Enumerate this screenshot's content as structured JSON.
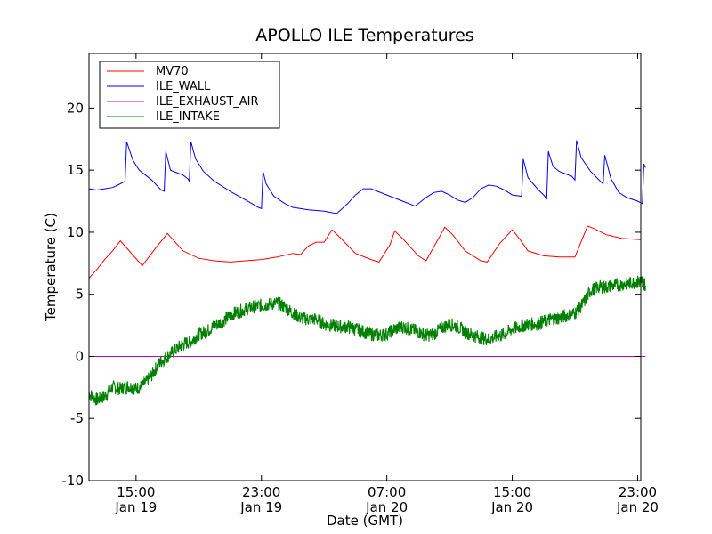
{
  "chart_data": {
    "type": "line",
    "title": "APOLLO ILE Temperatures",
    "xlabel": "Date (GMT)",
    "ylabel": "Temperature (C)",
    "ylim": [
      -10,
      24.4
    ],
    "xlim_hours_span": [
      0,
      35.2
    ],
    "yticks": [
      -10,
      -5,
      0,
      5,
      10,
      15,
      20
    ],
    "xticks": [
      {
        "hour": 3.0,
        "time": "15:00",
        "date": "Jan 19"
      },
      {
        "hour": 11.0,
        "time": "23:00",
        "date": "Jan 19"
      },
      {
        "hour": 19.0,
        "time": "07:00",
        "date": "Jan 20"
      },
      {
        "hour": 27.0,
        "time": "15:00",
        "date": "Jan 20"
      },
      {
        "hour": 35.0,
        "time": "23:00",
        "date": "Jan 20"
      }
    ],
    "legend_position": "top-left",
    "grid": false,
    "series": [
      {
        "name": "MV70",
        "color": "#ff0000",
        "points": [
          [
            0,
            6.3
          ],
          [
            0.5,
            7.0
          ],
          [
            1.0,
            7.8
          ],
          [
            1.5,
            8.5
          ],
          [
            2.0,
            9.3
          ],
          [
            2.5,
            8.6
          ],
          [
            3.4,
            7.3
          ],
          [
            4.3,
            8.8
          ],
          [
            5.0,
            9.9
          ],
          [
            6.0,
            8.5
          ],
          [
            7.0,
            7.9
          ],
          [
            8.0,
            7.7
          ],
          [
            9.0,
            7.6
          ],
          [
            10.0,
            7.7
          ],
          [
            11.0,
            7.8
          ],
          [
            12.0,
            8.0
          ],
          [
            13.0,
            8.3
          ],
          [
            13.5,
            8.2
          ],
          [
            14.0,
            8.9
          ],
          [
            14.5,
            9.2
          ],
          [
            15.0,
            9.2
          ],
          [
            15.5,
            10.2
          ],
          [
            16.0,
            9.6
          ],
          [
            17.0,
            8.3
          ],
          [
            18.0,
            7.8
          ],
          [
            18.5,
            7.6
          ],
          [
            19.2,
            9.0
          ],
          [
            19.5,
            10.1
          ],
          [
            20.0,
            9.5
          ],
          [
            21.0,
            8.1
          ],
          [
            21.5,
            7.7
          ],
          [
            22.3,
            9.5
          ],
          [
            22.7,
            10.4
          ],
          [
            23.2,
            9.8
          ],
          [
            24.0,
            8.5
          ],
          [
            25.0,
            7.7
          ],
          [
            25.4,
            7.6
          ],
          [
            26.2,
            9.1
          ],
          [
            27.0,
            10.2
          ],
          [
            27.5,
            9.4
          ],
          [
            28.0,
            8.5
          ],
          [
            29.0,
            8.1
          ],
          [
            30.0,
            8.0
          ],
          [
            31.0,
            8.0
          ],
          [
            31.8,
            10.5
          ],
          [
            32.2,
            10.3
          ],
          [
            33.0,
            9.8
          ],
          [
            34.0,
            9.5
          ],
          [
            35.2,
            9.4
          ]
        ]
      },
      {
        "name": "ILE_WALL",
        "color": "#0000ff",
        "points": [
          [
            0,
            13.5
          ],
          [
            0.5,
            13.4
          ],
          [
            1.0,
            13.5
          ],
          [
            1.5,
            13.6
          ],
          [
            2.0,
            13.9
          ],
          [
            2.3,
            14.1
          ],
          [
            2.4,
            17.3
          ],
          [
            2.8,
            15.8
          ],
          [
            3.2,
            15.0
          ],
          [
            4.0,
            14.2
          ],
          [
            4.6,
            13.4
          ],
          [
            4.8,
            13.3
          ],
          [
            4.9,
            16.5
          ],
          [
            5.2,
            15.0
          ],
          [
            5.6,
            14.8
          ],
          [
            6.0,
            14.6
          ],
          [
            6.3,
            14.3
          ],
          [
            6.4,
            14.1
          ],
          [
            6.5,
            17.3
          ],
          [
            6.8,
            15.9
          ],
          [
            7.3,
            14.9
          ],
          [
            8.0,
            14.1
          ],
          [
            9.0,
            13.3
          ],
          [
            10.0,
            12.6
          ],
          [
            10.8,
            12.0
          ],
          [
            11.0,
            11.9
          ],
          [
            11.1,
            14.9
          ],
          [
            11.3,
            13.9
          ],
          [
            11.8,
            12.9
          ],
          [
            12.5,
            12.3
          ],
          [
            13.0,
            12.0
          ],
          [
            14.0,
            11.8
          ],
          [
            15.0,
            11.7
          ],
          [
            15.8,
            11.5
          ],
          [
            16.5,
            12.3
          ],
          [
            17.0,
            13.0
          ],
          [
            17.5,
            13.5
          ],
          [
            18.0,
            13.5
          ],
          [
            19.0,
            13.0
          ],
          [
            20.0,
            12.5
          ],
          [
            20.8,
            12.1
          ],
          [
            21.5,
            12.8
          ],
          [
            22.0,
            13.2
          ],
          [
            22.5,
            13.3
          ],
          [
            23.0,
            13.0
          ],
          [
            23.5,
            12.6
          ],
          [
            24.0,
            12.4
          ],
          [
            24.5,
            12.8
          ],
          [
            25.0,
            13.5
          ],
          [
            25.5,
            13.8
          ],
          [
            26.0,
            13.7
          ],
          [
            26.5,
            13.4
          ],
          [
            27.0,
            13.0
          ],
          [
            27.6,
            12.9
          ],
          [
            27.7,
            15.9
          ],
          [
            28.0,
            14.4
          ],
          [
            28.6,
            13.5
          ],
          [
            29.0,
            13.0
          ],
          [
            29.2,
            12.7
          ],
          [
            29.3,
            16.5
          ],
          [
            29.6,
            15.3
          ],
          [
            30.0,
            14.9
          ],
          [
            30.8,
            14.5
          ],
          [
            31.0,
            14.2
          ],
          [
            31.1,
            17.4
          ],
          [
            31.4,
            16.0
          ],
          [
            32.0,
            14.9
          ],
          [
            32.7,
            14.0
          ],
          [
            32.8,
            13.9
          ],
          [
            32.9,
            16.2
          ],
          [
            33.3,
            14.3
          ],
          [
            33.8,
            13.2
          ],
          [
            34.3,
            12.8
          ],
          [
            35.0,
            12.5
          ],
          [
            35.3,
            12.3
          ],
          [
            35.4,
            15.5
          ],
          [
            35.5,
            15.2
          ]
        ]
      },
      {
        "name": "ILE_EXHAUST_AIR",
        "color": "#bf00bf",
        "points": [
          [
            0,
            0.0
          ],
          [
            35.5,
            0.0
          ]
        ]
      },
      {
        "name": "ILE_INTAKE",
        "color": "#008000",
        "points": [
          [
            0,
            -3.0
          ],
          [
            0.5,
            -3.5
          ],
          [
            1.0,
            -3.2
          ],
          [
            1.5,
            -2.5
          ],
          [
            2.0,
            -2.6
          ],
          [
            2.5,
            -2.4
          ],
          [
            3.0,
            -2.6
          ],
          [
            3.5,
            -2.3
          ],
          [
            4.0,
            -1.5
          ],
          [
            4.5,
            -0.5
          ],
          [
            5.0,
            0.0
          ],
          [
            5.5,
            0.5
          ],
          [
            6.0,
            1.0
          ],
          [
            6.5,
            1.2
          ],
          [
            7.0,
            1.8
          ],
          [
            7.5,
            2.0
          ],
          [
            8.0,
            2.5
          ],
          [
            8.5,
            2.8
          ],
          [
            9.0,
            3.3
          ],
          [
            9.5,
            3.6
          ],
          [
            10.0,
            3.8
          ],
          [
            10.5,
            4.0
          ],
          [
            11.0,
            4.1
          ],
          [
            11.5,
            4.2
          ],
          [
            12.0,
            4.3
          ],
          [
            12.5,
            4.0
          ],
          [
            13.0,
            3.5
          ],
          [
            13.5,
            3.1
          ],
          [
            14.0,
            3.0
          ],
          [
            14.5,
            3.0
          ],
          [
            15.0,
            2.6
          ],
          [
            15.5,
            2.5
          ],
          [
            16.0,
            2.4
          ],
          [
            16.5,
            2.4
          ],
          [
            17.0,
            2.2
          ],
          [
            17.5,
            2.0
          ],
          [
            18.0,
            1.8
          ],
          [
            18.5,
            1.7
          ],
          [
            19.0,
            1.8
          ],
          [
            19.5,
            2.2
          ],
          [
            20.0,
            2.4
          ],
          [
            20.5,
            2.2
          ],
          [
            21.0,
            2.0
          ],
          [
            21.5,
            1.7
          ],
          [
            22.0,
            1.8
          ],
          [
            22.5,
            2.3
          ],
          [
            23.0,
            2.6
          ],
          [
            23.5,
            2.4
          ],
          [
            24.0,
            2.0
          ],
          [
            24.5,
            1.7
          ],
          [
            25.0,
            1.5
          ],
          [
            25.5,
            1.4
          ],
          [
            26.0,
            1.6
          ],
          [
            26.5,
            1.8
          ],
          [
            27.0,
            2.2
          ],
          [
            27.5,
            2.4
          ],
          [
            28.0,
            2.6
          ],
          [
            28.5,
            2.6
          ],
          [
            29.0,
            2.8
          ],
          [
            29.5,
            3.0
          ],
          [
            30.0,
            3.1
          ],
          [
            30.5,
            3.3
          ],
          [
            31.0,
            3.5
          ],
          [
            31.5,
            4.2
          ],
          [
            32.0,
            5.3
          ],
          [
            32.5,
            5.6
          ],
          [
            33.0,
            5.6
          ],
          [
            33.5,
            5.7
          ],
          [
            34.0,
            5.8
          ],
          [
            34.5,
            5.9
          ],
          [
            35.0,
            6.0
          ],
          [
            35.3,
            6.1
          ],
          [
            35.5,
            5.7
          ]
        ]
      }
    ]
  }
}
